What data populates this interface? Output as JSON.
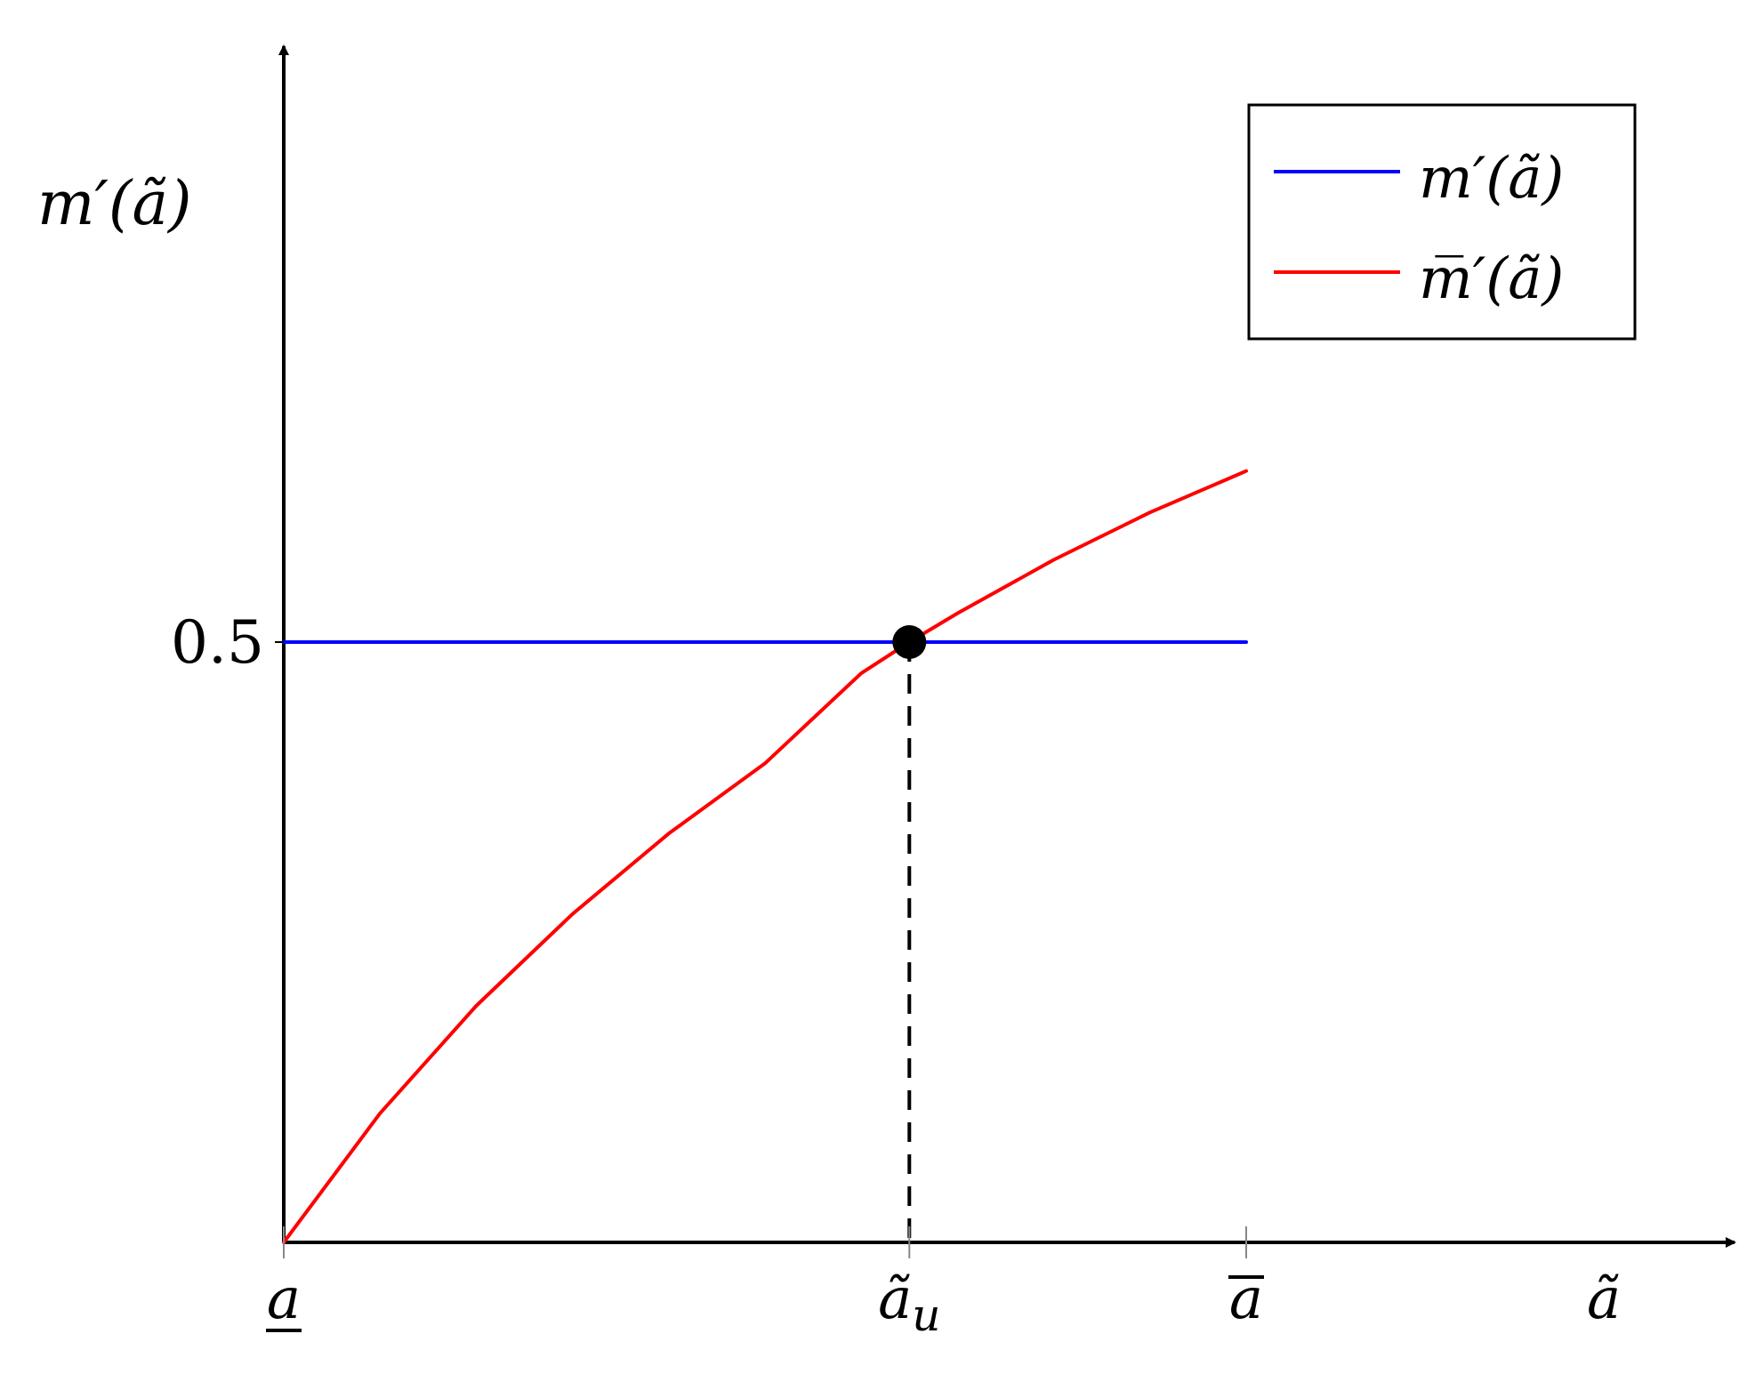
{
  "chart_data": {
    "type": "line",
    "ylabel": "m′(ã)",
    "xlabel": "ã",
    "x_ticks": [
      {
        "name": "a_lower",
        "value": 0,
        "label": "a",
        "decoration": "underline"
      },
      {
        "name": "a_u",
        "value": 0.65,
        "label": "ãu",
        "decoration": "subscript"
      },
      {
        "name": "a_upper",
        "value": 1,
        "label": "a",
        "decoration": "overline"
      }
    ],
    "y_ticks": [
      {
        "value": 0.5,
        "label": "0.5"
      }
    ],
    "xlim": [
      0,
      1.5
    ],
    "ylim": [
      0,
      1
    ],
    "series": [
      {
        "name": "m′(ã)",
        "color": "#0000ff",
        "x": [
          0,
          1
        ],
        "y": [
          0.5,
          0.5
        ]
      },
      {
        "name": "m̅′(ã)",
        "color": "#ff0000",
        "x": [
          0,
          0.1,
          0.2,
          0.3,
          0.4,
          0.5,
          0.6,
          0.65,
          0.7,
          0.8,
          0.9,
          1
        ],
        "y": [
          0,
          0.1075,
          0.197,
          0.2735,
          0.3405,
          0.399,
          0.474,
          0.5,
          0.524,
          0.5685,
          0.608,
          0.6425
        ]
      }
    ],
    "intersection": {
      "x": 0.65,
      "y": 0.5
    },
    "legend": {
      "position": "top-right",
      "entries": [
        "m′(ã)",
        "m̅′(ã)"
      ]
    },
    "grid": false
  }
}
